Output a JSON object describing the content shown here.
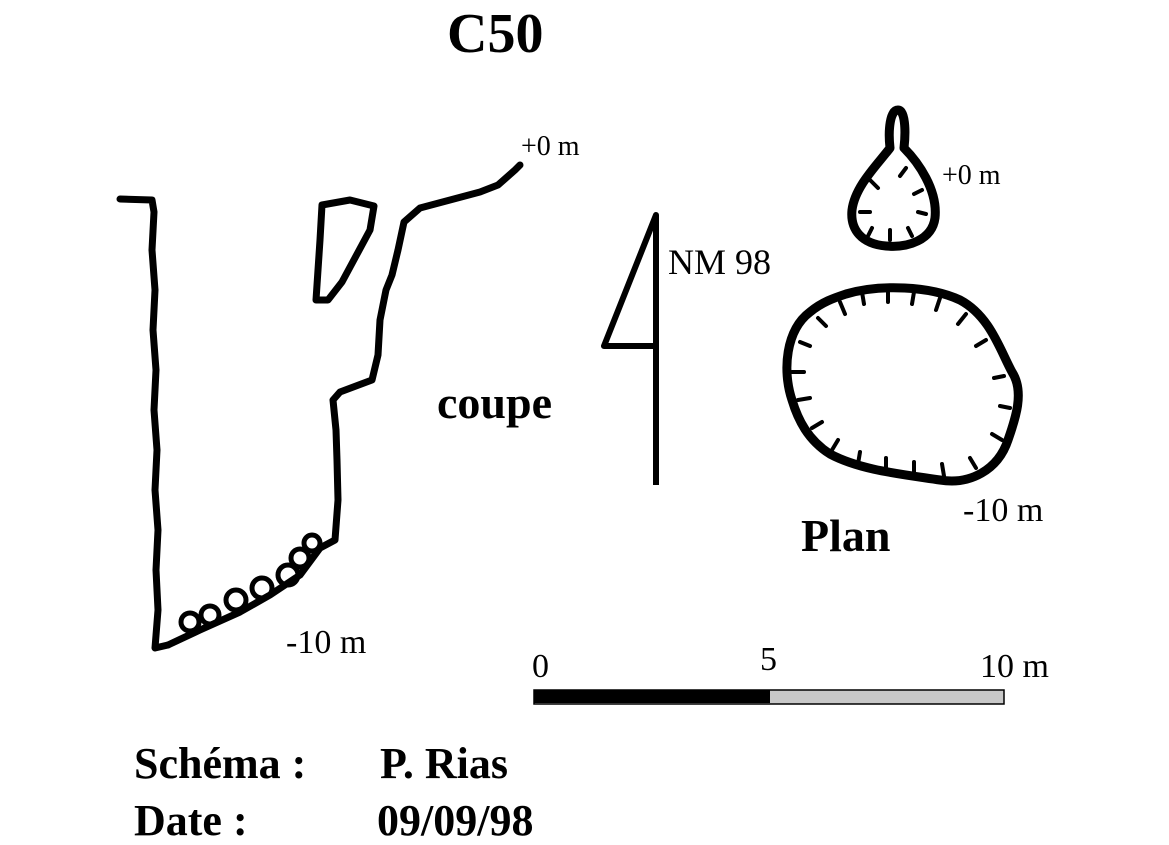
{
  "title": "C50",
  "section": {
    "label": "coupe",
    "top_depth": "+0 m",
    "bottom_depth": "-10 m"
  },
  "north": {
    "label": "NM 98"
  },
  "plan": {
    "label": "Plan",
    "top_depth": "+0 m",
    "bottom_depth": "-10 m"
  },
  "scale_bar": {
    "tick_0": "0",
    "tick_mid": "5",
    "tick_end": "10 m",
    "colors": {
      "filled": "#000000",
      "empty": "#c8c8c8"
    }
  },
  "credits": {
    "schema_label": "Schéma :",
    "schema_value": "P. Rias",
    "date_label": "Date :",
    "date_value": "09/09/98"
  }
}
